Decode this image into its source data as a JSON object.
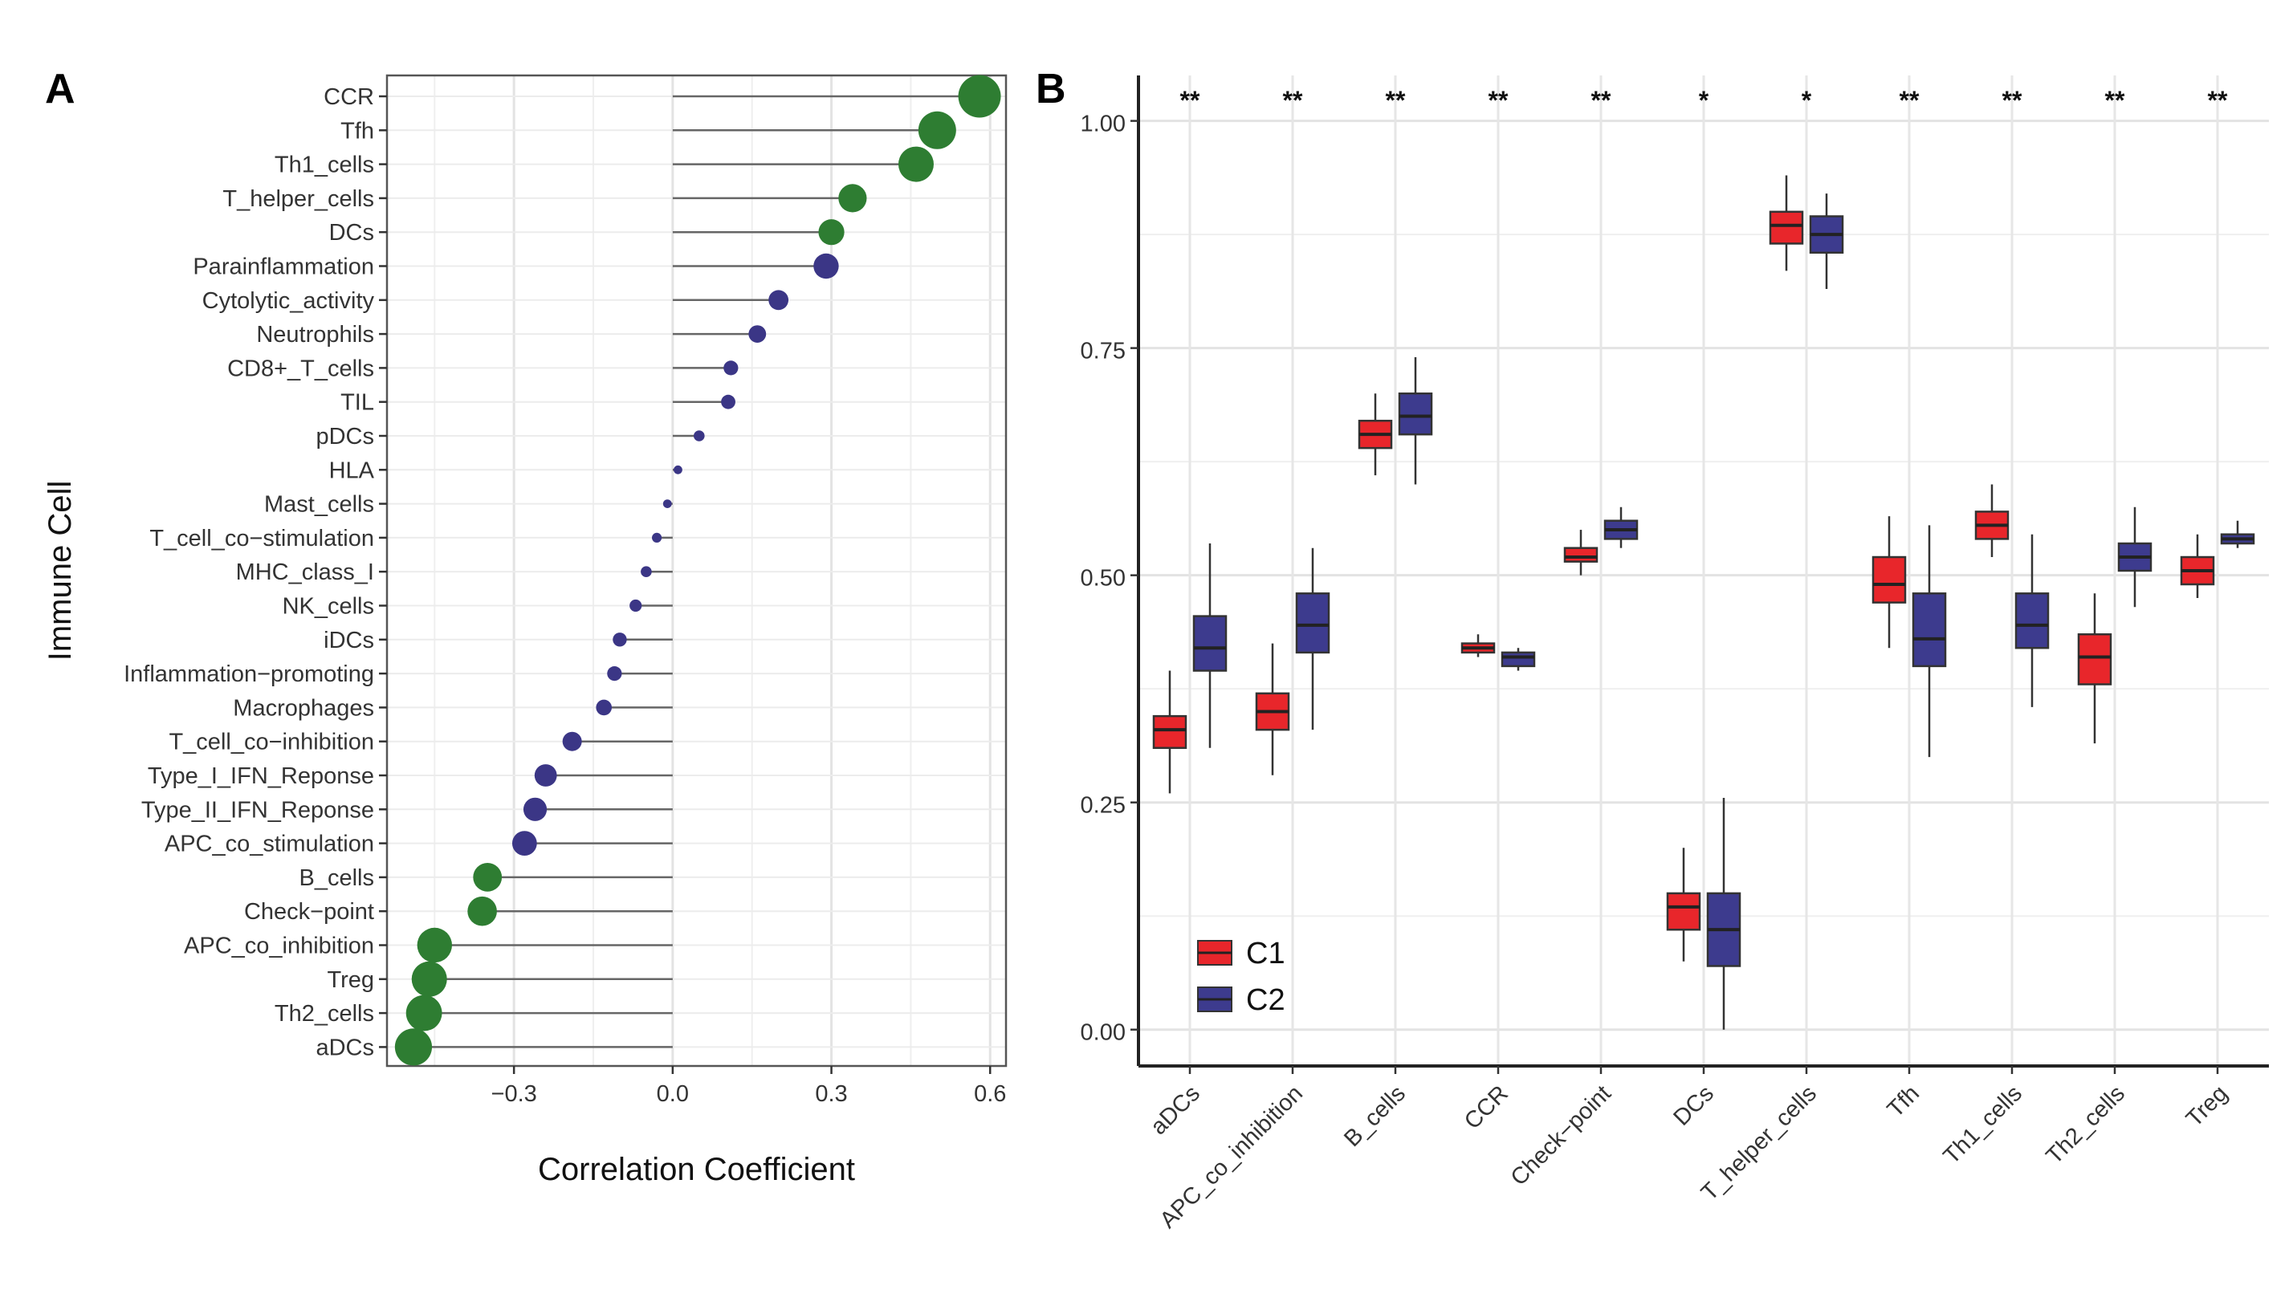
{
  "chart_data": [
    {
      "panel": "A",
      "type": "scatter",
      "subtype": "lollipop",
      "xlabel": "Correlation Coefficient",
      "ylabel": "Immune Cell",
      "xlim": [
        -0.54,
        0.63
      ],
      "xticks": [
        -0.3,
        0.0,
        0.3,
        0.6
      ],
      "xtick_labels": [
        "−0.3",
        "0.0",
        "0.3",
        "0.6"
      ],
      "grid": true,
      "colors": {
        "positive_group": "#2e7d32",
        "negative_group": "#3b3686"
      },
      "points": [
        {
          "label": "CCR",
          "value": 0.58,
          "group": "green"
        },
        {
          "label": "Tfh",
          "value": 0.5,
          "group": "green"
        },
        {
          "label": "Th1_cells",
          "value": 0.46,
          "group": "green"
        },
        {
          "label": "T_helper_cells",
          "value": 0.34,
          "group": "green"
        },
        {
          "label": "DCs",
          "value": 0.3,
          "group": "green"
        },
        {
          "label": "Parainflammation",
          "value": 0.29,
          "group": "purple"
        },
        {
          "label": "Cytolytic_activity",
          "value": 0.2,
          "group": "purple"
        },
        {
          "label": "Neutrophils",
          "value": 0.16,
          "group": "purple"
        },
        {
          "label": "CD8+_T_cells",
          "value": 0.11,
          "group": "purple"
        },
        {
          "label": "TIL",
          "value": 0.105,
          "group": "purple"
        },
        {
          "label": "pDCs",
          "value": 0.05,
          "group": "purple"
        },
        {
          "label": "HLA",
          "value": 0.01,
          "group": "purple"
        },
        {
          "label": "Mast_cells",
          "value": -0.01,
          "group": "purple"
        },
        {
          "label": "T_cell_co−stimulation",
          "value": -0.03,
          "group": "purple"
        },
        {
          "label": "MHC_class_I",
          "value": -0.05,
          "group": "purple"
        },
        {
          "label": "NK_cells",
          "value": -0.07,
          "group": "purple"
        },
        {
          "label": "iDCs",
          "value": -0.1,
          "group": "purple"
        },
        {
          "label": "Inflammation−promoting",
          "value": -0.11,
          "group": "purple"
        },
        {
          "label": "Macrophages",
          "value": -0.13,
          "group": "purple"
        },
        {
          "label": "T_cell_co−inhibition",
          "value": -0.19,
          "group": "purple"
        },
        {
          "label": "Type_I_IFN_Reponse",
          "value": -0.24,
          "group": "purple"
        },
        {
          "label": "Type_II_IFN_Reponse",
          "value": -0.26,
          "group": "purple"
        },
        {
          "label": "APC_co_stimulation",
          "value": -0.28,
          "group": "purple"
        },
        {
          "label": "B_cells",
          "value": -0.35,
          "group": "green"
        },
        {
          "label": "Check−point",
          "value": -0.36,
          "group": "green"
        },
        {
          "label": "APC_co_inhibition",
          "value": -0.45,
          "group": "green"
        },
        {
          "label": "Treg",
          "value": -0.46,
          "group": "green"
        },
        {
          "label": "Th2_cells",
          "value": -0.47,
          "group": "green"
        },
        {
          "label": "aDCs",
          "value": -0.49,
          "group": "green"
        }
      ]
    },
    {
      "panel": "B",
      "type": "box",
      "ylim": [
        -0.04,
        1.05
      ],
      "yticks": [
        0.0,
        0.25,
        0.5,
        0.75,
        1.0
      ],
      "ytick_labels": [
        "0.00",
        "0.25",
        "0.50",
        "0.75",
        "1.00"
      ],
      "grid": true,
      "legend_position": "bottom-left",
      "categories": [
        "aDCs",
        "APC_co_inhibition",
        "B_cells",
        "CCR",
        "Check−point",
        "DCs",
        "T_helper_cells",
        "Tfh",
        "Th1_cells",
        "Th2_cells",
        "Treg"
      ],
      "significance": [
        "**",
        "**",
        "**",
        "**",
        "**",
        "*",
        "*",
        "**",
        "**",
        "**",
        "**"
      ],
      "series": [
        {
          "name": "C1",
          "color": "#e8262b",
          "boxes": [
            {
              "min": 0.26,
              "q1": 0.31,
              "median": 0.33,
              "q3": 0.345,
              "max": 0.395
            },
            {
              "min": 0.28,
              "q1": 0.33,
              "median": 0.35,
              "q3": 0.37,
              "max": 0.425
            },
            {
              "min": 0.61,
              "q1": 0.64,
              "median": 0.655,
              "q3": 0.67,
              "max": 0.7
            },
            {
              "min": 0.41,
              "q1": 0.415,
              "median": 0.42,
              "q3": 0.425,
              "max": 0.435
            },
            {
              "min": 0.5,
              "q1": 0.515,
              "median": 0.52,
              "q3": 0.53,
              "max": 0.55
            },
            {
              "min": 0.075,
              "q1": 0.11,
              "median": 0.135,
              "q3": 0.15,
              "max": 0.2
            },
            {
              "min": 0.835,
              "q1": 0.865,
              "median": 0.885,
              "q3": 0.9,
              "max": 0.94
            },
            {
              "min": 0.42,
              "q1": 0.47,
              "median": 0.49,
              "q3": 0.52,
              "max": 0.565
            },
            {
              "min": 0.52,
              "q1": 0.54,
              "median": 0.555,
              "q3": 0.57,
              "max": 0.6
            },
            {
              "min": 0.315,
              "q1": 0.38,
              "median": 0.41,
              "q3": 0.435,
              "max": 0.48
            },
            {
              "min": 0.475,
              "q1": 0.49,
              "median": 0.505,
              "q3": 0.52,
              "max": 0.545
            }
          ]
        },
        {
          "name": "C2",
          "color": "#3d3b8e",
          "boxes": [
            {
              "min": 0.31,
              "q1": 0.395,
              "median": 0.42,
              "q3": 0.455,
              "max": 0.535
            },
            {
              "min": 0.33,
              "q1": 0.415,
              "median": 0.445,
              "q3": 0.48,
              "max": 0.53
            },
            {
              "min": 0.6,
              "q1": 0.655,
              "median": 0.675,
              "q3": 0.7,
              "max": 0.74
            },
            {
              "min": 0.395,
              "q1": 0.4,
              "median": 0.41,
              "q3": 0.415,
              "max": 0.42
            },
            {
              "min": 0.53,
              "q1": 0.54,
              "median": 0.55,
              "q3": 0.56,
              "max": 0.575
            },
            {
              "min": 0.0,
              "q1": 0.07,
              "median": 0.11,
              "q3": 0.15,
              "max": 0.255
            },
            {
              "min": 0.815,
              "q1": 0.855,
              "median": 0.875,
              "q3": 0.895,
              "max": 0.92
            },
            {
              "min": 0.3,
              "q1": 0.4,
              "median": 0.43,
              "q3": 0.48,
              "max": 0.555
            },
            {
              "min": 0.355,
              "q1": 0.42,
              "median": 0.445,
              "q3": 0.48,
              "max": 0.545
            },
            {
              "min": 0.465,
              "q1": 0.505,
              "median": 0.52,
              "q3": 0.535,
              "max": 0.575
            },
            {
              "min": 0.53,
              "q1": 0.535,
              "median": 0.54,
              "q3": 0.545,
              "max": 0.56
            }
          ]
        }
      ]
    }
  ],
  "labels": {
    "panel_a": "A",
    "panel_b": "B"
  }
}
